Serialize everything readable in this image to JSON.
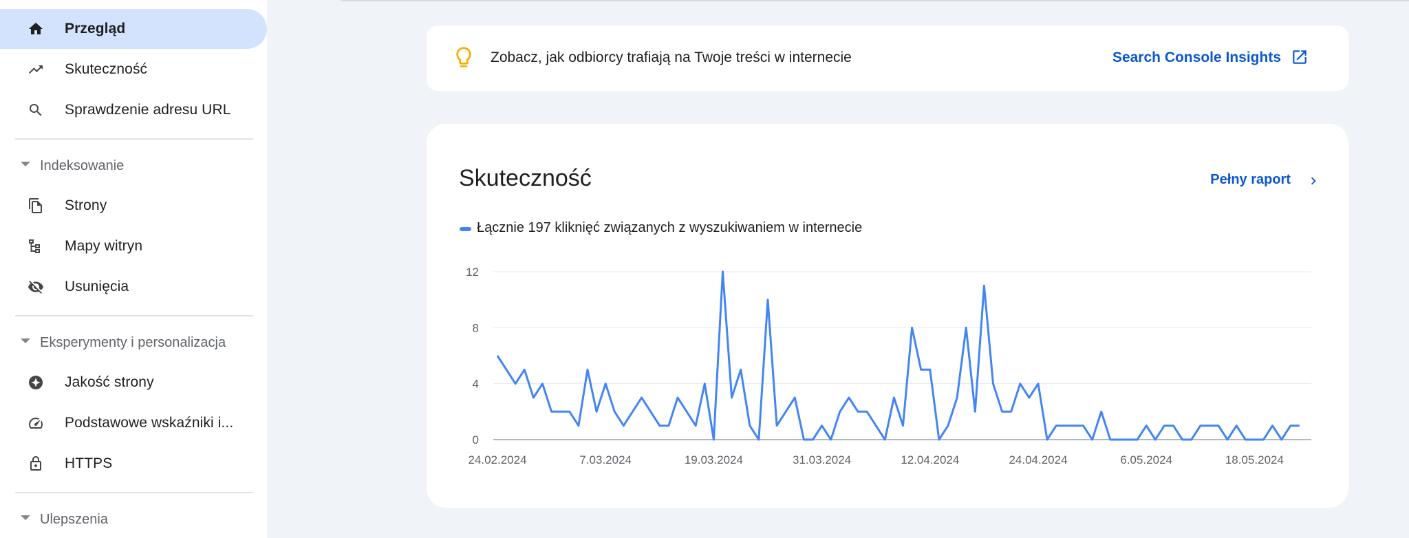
{
  "sidebar": {
    "top_items": [
      {
        "label": "Przegląd",
        "icon": "home-icon",
        "active": true
      },
      {
        "label": "Skuteczność",
        "icon": "trending-up-icon",
        "active": false
      },
      {
        "label": "Sprawdzenie adresu URL",
        "icon": "search-icon",
        "active": false
      }
    ],
    "sections": [
      {
        "label": "Indeksowanie",
        "items": [
          {
            "label": "Strony",
            "icon": "pages-icon"
          },
          {
            "label": "Mapy witryn",
            "icon": "sitemap-icon"
          },
          {
            "label": "Usunięcia",
            "icon": "eye-off-icon"
          }
        ]
      },
      {
        "label": "Eksperymenty i personalizacja",
        "items": [
          {
            "label": "Jakość strony",
            "icon": "page-quality-icon"
          },
          {
            "label": "Podstawowe wskaźniki i...",
            "icon": "speed-gauge-icon"
          },
          {
            "label": "HTTPS",
            "icon": "lock-icon"
          }
        ]
      },
      {
        "label": "Ulepszenia",
        "items": []
      }
    ]
  },
  "insights": {
    "text": "Zobacz, jak odbiorcy trafiają na Twoje treści w internecie",
    "link_label": "Search Console Insights",
    "icon": "lightbulb-icon",
    "link_icon": "open-in-new-icon"
  },
  "performance": {
    "title": "Skuteczność",
    "full_report_label": "Pełny raport",
    "legend_label": "Łącznie 197 kliknięć związanych z wyszukiwaniem w internecie"
  },
  "colors": {
    "accent": "#0b57d0",
    "series": "#4285f4",
    "active_nav": "#d3e3fd",
    "insight_bulb": "#f9ab00"
  },
  "chart_data": {
    "type": "line",
    "x_tick_labels": [
      "24.02.2024",
      "7.03.2024",
      "19.03.2024",
      "31.03.2024",
      "12.04.2024",
      "24.04.2024",
      "6.05.2024",
      "18.05.2024"
    ],
    "y_tick_labels": [
      "0",
      "4",
      "8",
      "12"
    ],
    "ylim": [
      0,
      12
    ],
    "grid": true,
    "series": [
      {
        "values": [
          6,
          5,
          4,
          5,
          3,
          4,
          2,
          2,
          2,
          1,
          5,
          2,
          4,
          2,
          1,
          2,
          3,
          2,
          1,
          1,
          3,
          2,
          1,
          4,
          0,
          12,
          3,
          5,
          1,
          0,
          10,
          1,
          2,
          3,
          0,
          0,
          1,
          0,
          2,
          3,
          2,
          2,
          1,
          0,
          3,
          1,
          8,
          5,
          5,
          0,
          1,
          3,
          8,
          2,
          11,
          4,
          2,
          2,
          4,
          3,
          4,
          0,
          1,
          1,
          1,
          1,
          0,
          2,
          0,
          0,
          0,
          0,
          1,
          0,
          1,
          1,
          0,
          0,
          1,
          1,
          1,
          0,
          1,
          0,
          0,
          0,
          1,
          0,
          1,
          1
        ]
      }
    ]
  }
}
